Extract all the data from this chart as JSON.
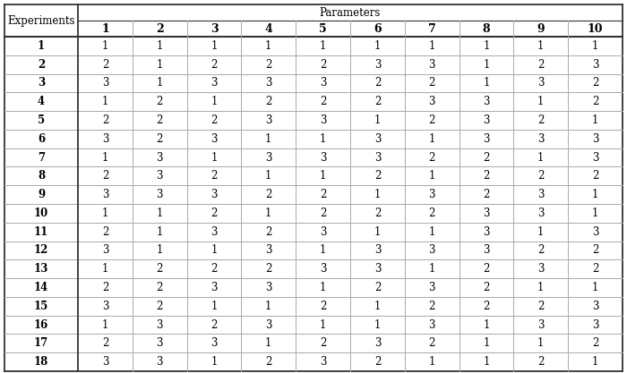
{
  "title_row": "Parameters",
  "col_headers": [
    "1",
    "2",
    "3",
    "4",
    "5",
    "6",
    "7",
    "8",
    "9",
    "10"
  ],
  "row_headers": [
    "1",
    "2",
    "3",
    "4",
    "5",
    "6",
    "7",
    "8",
    "9",
    "10",
    "11",
    "12",
    "13",
    "14",
    "15",
    "16",
    "17",
    "18"
  ],
  "experiment_label": "Experiments",
  "table_data": [
    [
      1,
      1,
      1,
      1,
      1,
      1,
      1,
      1,
      1,
      1
    ],
    [
      2,
      1,
      2,
      2,
      2,
      3,
      3,
      1,
      2,
      3
    ],
    [
      3,
      1,
      3,
      3,
      3,
      2,
      2,
      1,
      3,
      2
    ],
    [
      1,
      2,
      1,
      2,
      2,
      2,
      3,
      3,
      1,
      2
    ],
    [
      2,
      2,
      2,
      3,
      3,
      1,
      2,
      3,
      2,
      1
    ],
    [
      3,
      2,
      3,
      1,
      1,
      3,
      1,
      3,
      3,
      3
    ],
    [
      1,
      3,
      1,
      3,
      3,
      3,
      2,
      2,
      1,
      3
    ],
    [
      2,
      3,
      2,
      1,
      1,
      2,
      1,
      2,
      2,
      2
    ],
    [
      3,
      3,
      3,
      2,
      2,
      1,
      3,
      2,
      3,
      1
    ],
    [
      1,
      1,
      2,
      1,
      2,
      2,
      2,
      3,
      3,
      1
    ],
    [
      2,
      1,
      3,
      2,
      3,
      1,
      1,
      3,
      1,
      3
    ],
    [
      3,
      1,
      1,
      3,
      1,
      3,
      3,
      3,
      2,
      2
    ],
    [
      1,
      2,
      2,
      2,
      3,
      3,
      1,
      2,
      3,
      2
    ],
    [
      2,
      2,
      3,
      3,
      1,
      2,
      3,
      2,
      1,
      1
    ],
    [
      3,
      2,
      1,
      1,
      2,
      1,
      2,
      2,
      2,
      3
    ],
    [
      1,
      3,
      2,
      3,
      1,
      1,
      3,
      1,
      3,
      3
    ],
    [
      2,
      3,
      3,
      1,
      2,
      3,
      2,
      1,
      1,
      2
    ],
    [
      3,
      3,
      1,
      2,
      3,
      2,
      1,
      1,
      2,
      1
    ]
  ],
  "bg_color": "#ffffff",
  "line_color_light": "#aaaaaa",
  "line_color_dark": "#333333",
  "text_color": "#000000",
  "font_family": "DejaVu Serif",
  "font_size": 8.5,
  "header_font_size": 8.5,
  "fig_width": 7.0,
  "fig_height": 4.17,
  "dpi": 100
}
